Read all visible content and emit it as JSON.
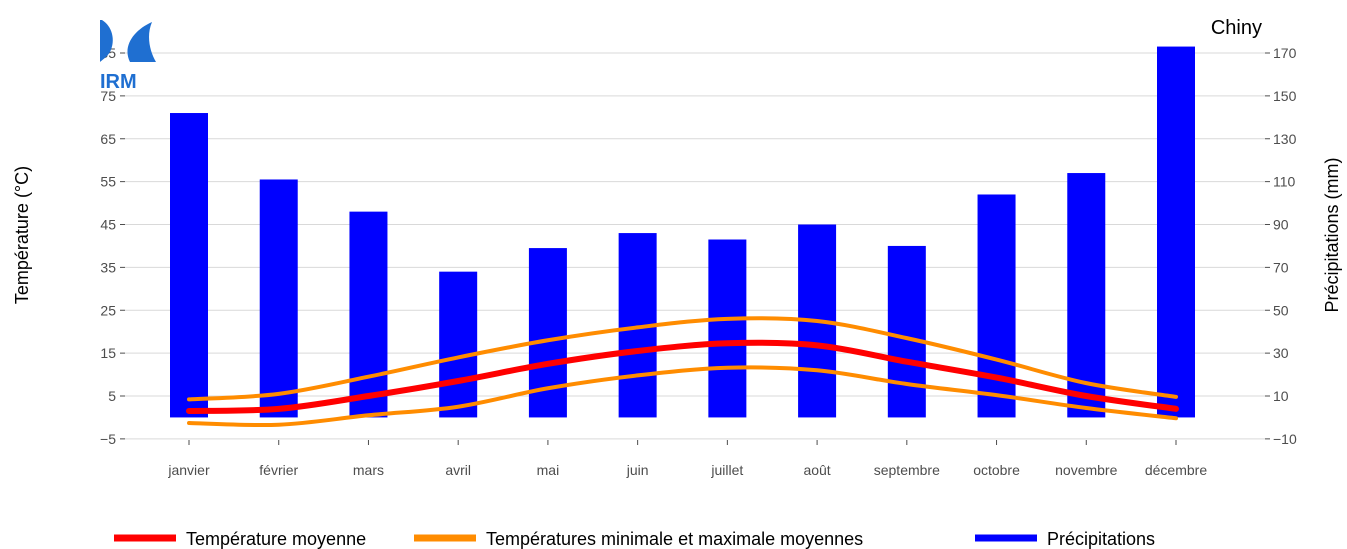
{
  "chart_data": {
    "type": "bar+line",
    "title": "Chiny",
    "logo_text": "IRM",
    "categories": [
      "janvier",
      "février",
      "mars",
      "avril",
      "mai",
      "juin",
      "juillet",
      "août",
      "septembre",
      "octobre",
      "novembre",
      "décembre"
    ],
    "y_left": {
      "label": "Température (°C)",
      "range": [
        -7,
        90
      ],
      "ticks": [
        -5,
        5,
        15,
        25,
        35,
        45,
        55,
        65,
        75,
        85
      ],
      "tick_labels": [
        "−5",
        "5",
        "15",
        "25",
        "35",
        "45",
        "55",
        "65",
        "75",
        "85"
      ]
    },
    "y_right": {
      "label": "Précipitations (mm)",
      "ticks": [
        -10,
        10,
        30,
        50,
        70,
        90,
        110,
        130,
        150,
        170
      ],
      "tick_labels": [
        "−10",
        "10",
        "30",
        "50",
        "70",
        "90",
        "110",
        "130",
        "150",
        "170"
      ]
    },
    "series": [
      {
        "name": "Précipitations",
        "type": "bar",
        "axis": "right",
        "color": "#0000ff",
        "values": [
          142,
          111,
          96,
          68,
          79,
          86,
          83,
          90,
          80,
          104,
          114,
          173
        ]
      },
      {
        "name": "Température moyenne",
        "type": "line",
        "axis": "left",
        "color": "#ff0000",
        "values": [
          1.5,
          2.0,
          5.0,
          8.5,
          12.5,
          15.5,
          17.3,
          16.8,
          13.0,
          9.3,
          5.0,
          2.0
        ]
      },
      {
        "name": "Températures minimale et maximale moyennes",
        "type": "line",
        "axis": "left",
        "color": "#ff8c00",
        "legend_group": true,
        "values": [
          4.2,
          5.5,
          9.5,
          14.0,
          18.0,
          21.0,
          23.0,
          22.5,
          18.5,
          13.5,
          8.0,
          4.8
        ]
      },
      {
        "name": "Températures minimale et maximale moyennes",
        "type": "line",
        "axis": "left",
        "color": "#ff8c00",
        "legend_group": true,
        "values": [
          -1.3,
          -1.7,
          0.5,
          2.5,
          6.8,
          9.8,
          11.6,
          11.0,
          7.8,
          5.2,
          2.2,
          -0.2
        ]
      }
    ],
    "grid": "horizontal",
    "legend_position": "bottom"
  }
}
